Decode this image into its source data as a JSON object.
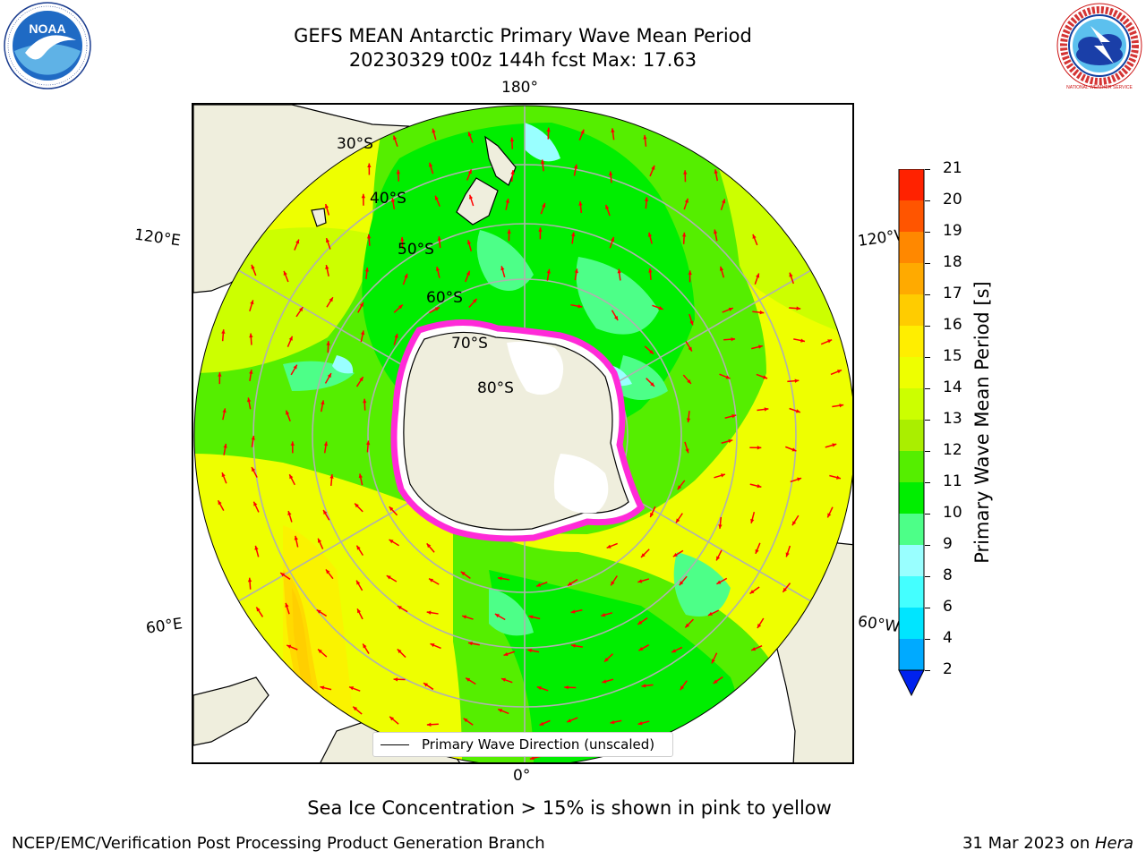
{
  "title": {
    "line1": "GEFS MEAN Antarctic Primary Wave Mean Period",
    "line2": "20230329 t00z 144h fcst   Max: 17.63"
  },
  "logos": {
    "left": {
      "name": "NOAA",
      "text": "NOAA"
    },
    "right": {
      "name": "National Weather Service",
      "text": "NATIONAL WEATHER SERVICE"
    }
  },
  "map": {
    "projection": "south-polar-stereographic",
    "longitude_labels": {
      "top": "180°",
      "bottom": "0°",
      "upper_left": "120°E",
      "upper_right": "120°W",
      "lower_left": "60°E",
      "lower_right": "60°W"
    },
    "latitude_labels": [
      "30°S",
      "40°S",
      "50°S",
      "60°S",
      "70°S",
      "80°S"
    ],
    "legend_label": "Primary Wave Direction (unscaled)",
    "colors": {
      "land": "#efeedd",
      "arrow": "#ff0000",
      "gridline": "#b0b0b0",
      "ice_edge": "#ff2ad8"
    }
  },
  "colorbar": {
    "label": "Primary Wave Mean Period [s]",
    "ticks": [
      "2",
      "4",
      "6",
      "8",
      "9",
      "10",
      "11",
      "12",
      "13",
      "14",
      "15",
      "16",
      "17",
      "18",
      "19",
      "20",
      "21"
    ],
    "colors": [
      "#0055ff",
      "#00aaff",
      "#00e5ff",
      "#44ffff",
      "#99ffff",
      "#4dff88",
      "#00ee00",
      "#55ee00",
      "#aaee00",
      "#ccff00",
      "#eeff00",
      "#ffee00",
      "#ffcc00",
      "#ffaa00",
      "#ff8800",
      "#ff5500",
      "#ff2200",
      "#ff0000"
    ],
    "under_color": "#0022ee"
  },
  "note": "Sea Ice Concentration > 15% is shown in pink to yellow",
  "footer": {
    "left": "NCEP/EMC/Verification Post Processing Product Generation Branch",
    "right_prefix": "31 Mar 2023 on ",
    "right_italic": "Hera"
  }
}
